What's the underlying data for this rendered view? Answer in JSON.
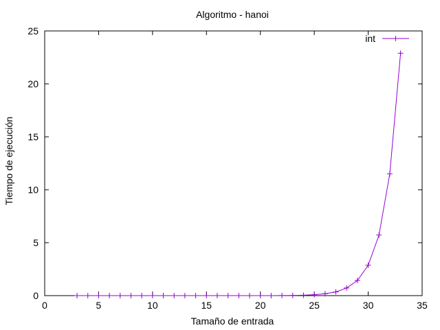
{
  "chart_data": {
    "type": "line",
    "title": "Algoritmo - hanoi",
    "xlabel": "Tamaño de entrada",
    "ylabel": "Tiempo de ejecución",
    "xlim": [
      0,
      35
    ],
    "ylim": [
      0,
      25
    ],
    "xticks": [
      0,
      5,
      10,
      15,
      20,
      25,
      30,
      35
    ],
    "yticks": [
      0,
      5,
      10,
      15,
      20,
      25
    ],
    "grid": false,
    "legend_position": "top-right",
    "series": [
      {
        "name": "int",
        "color": "#9400d3",
        "marker": "plus",
        "x": [
          3,
          4,
          5,
          6,
          7,
          8,
          9,
          10,
          11,
          12,
          13,
          14,
          15,
          16,
          17,
          18,
          19,
          20,
          21,
          22,
          23,
          24,
          25,
          26,
          27,
          28,
          29,
          30,
          31,
          32,
          33
        ],
        "y": [
          0,
          0,
          0,
          0,
          0,
          0,
          0,
          0,
          0,
          0,
          0,
          0,
          0,
          0,
          0,
          0,
          0,
          0,
          0,
          0.01,
          0.02,
          0.04,
          0.09,
          0.18,
          0.35,
          0.72,
          1.43,
          2.87,
          5.72,
          11.5,
          22.9
        ]
      }
    ]
  }
}
